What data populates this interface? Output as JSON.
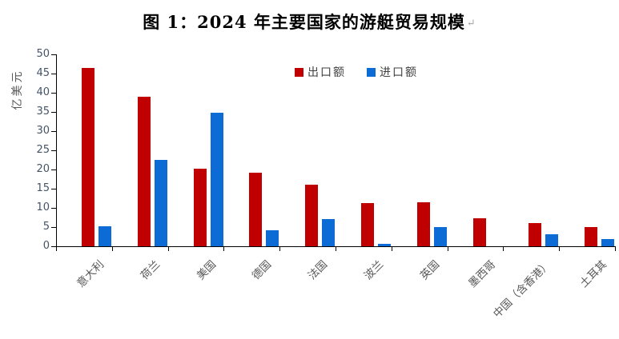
{
  "title": {
    "text": "图 1：2024 年主要国家的游艇贸易规模",
    "paragraph_mark": "↵"
  },
  "chart_data": {
    "type": "bar",
    "title": "图 1：2024 年主要国家的游艇贸易规模",
    "categories": [
      "意大利",
      "荷兰",
      "美国",
      "德国",
      "法国",
      "波兰",
      "英国",
      "墨西哥",
      "中国（含香港）",
      "土耳其"
    ],
    "series": [
      {
        "name": "出口额",
        "color": "#C00000",
        "values": [
          46.5,
          39.0,
          20.3,
          19.2,
          16.1,
          11.3,
          11.4,
          7.2,
          6.1,
          4.9
        ]
      },
      {
        "name": "进口额",
        "color": "#0C6BD4",
        "values": [
          5.3,
          22.6,
          34.8,
          4.2,
          7.1,
          0.7,
          5.1,
          0,
          3.2,
          1.8
        ]
      }
    ],
    "ylabel": "亿美元",
    "xlabel": "",
    "ylim": [
      0,
      50
    ],
    "ytick_step": 5,
    "grid": false,
    "legend_position": "top-center"
  },
  "palette": {
    "axis_line": "#000000",
    "ytick_text": "#44546A",
    "category_text": "#595959",
    "ylabel_text": "#595959",
    "legend_text": "#404040",
    "paragraph_mark": "#a8a8a8"
  }
}
